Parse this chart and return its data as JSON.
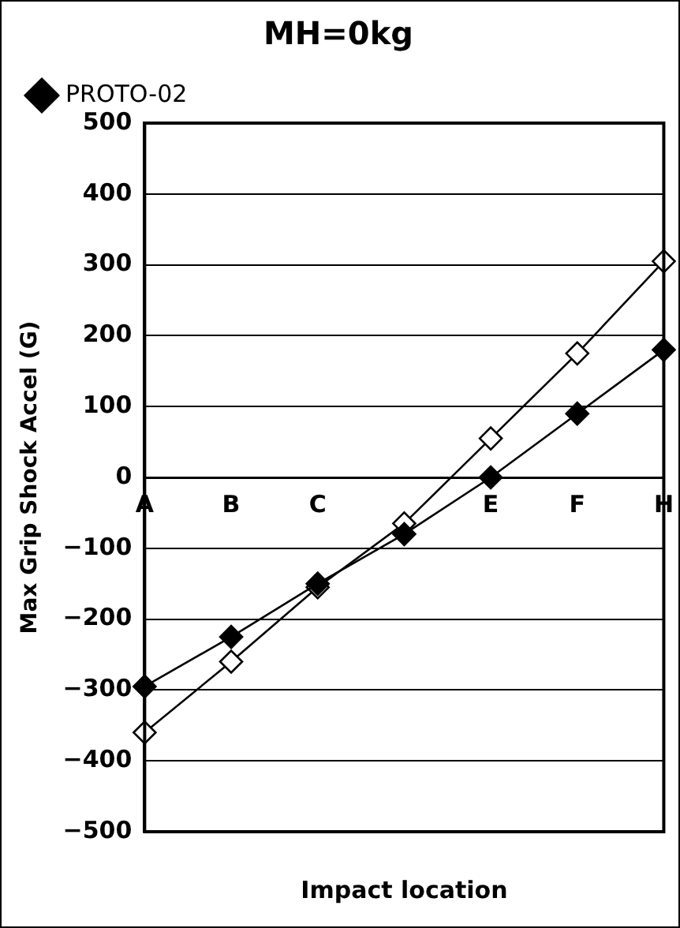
{
  "chart_data": {
    "type": "line",
    "title": "MH=0kg",
    "xlabel": "Impact location",
    "ylabel": "Max Grip Shock Accel (G)",
    "categories": [
      "A",
      "B",
      "C",
      null,
      "E",
      "F",
      "H"
    ],
    "series": [
      {
        "color": "#000000",
        "values": [
          -360,
          -260,
          -155,
          -65,
          55,
          175,
          305
        ]
      },
      {
        "name": "PROTO-02",
        "color": "#000000",
        "values": [
          -295,
          -225,
          -150,
          -80,
          0,
          90,
          180
        ]
      }
    ],
    "ylim": [
      -500,
      500
    ],
    "yticks": [
      -500,
      -400,
      -300,
      -200,
      -100,
      0,
      100,
      200,
      300,
      400,
      500
    ],
    "grid": "y",
    "legend": "top left",
    "marker": "diamond",
    "line_style": "solid"
  }
}
